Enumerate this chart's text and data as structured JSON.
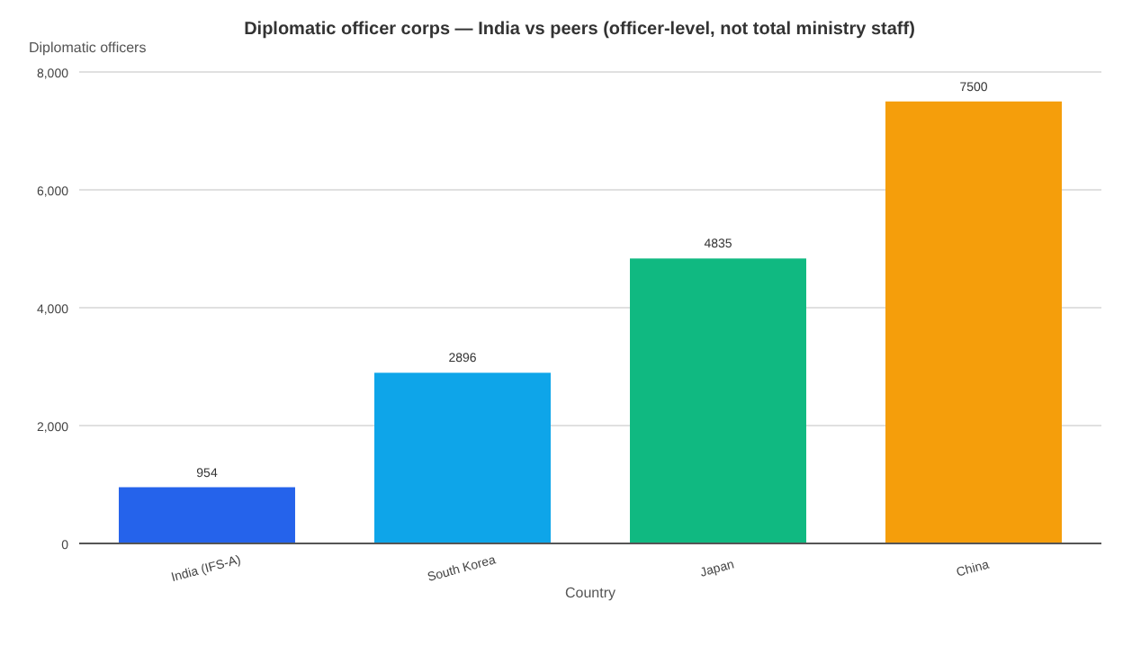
{
  "chart_data": {
    "type": "bar",
    "title": "Diplomatic officer corps — India vs peers (officer-level, not total ministry staff)",
    "xlabel": "Country",
    "ylabel": "Diplomatic officers",
    "categories": [
      "India (IFS-A)",
      "South Korea",
      "Japan",
      "China"
    ],
    "values": [
      954,
      2896,
      4835,
      7500
    ],
    "colors": [
      "#2563eb",
      "#0ea5e9",
      "#10b981",
      "#f59e0b"
    ],
    "ylim": [
      0,
      8000
    ],
    "yticks": [
      0,
      {
        "value": 2000,
        "label": "2,000"
      },
      {
        "value": 4000,
        "label": "4,000"
      },
      {
        "value": 6000,
        "label": "6,000"
      },
      {
        "value": 8000,
        "label": "8,000"
      }
    ],
    "grid": "y",
    "data_labels": true
  }
}
